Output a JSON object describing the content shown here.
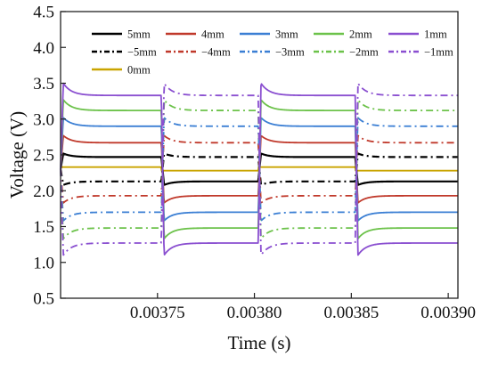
{
  "chart_data": {
    "type": "line",
    "xlabel": "Time (s)",
    "ylabel": "Voltage (V)",
    "xlim": [
      0.0037,
      0.003905
    ],
    "ylim": [
      0.5,
      4.5
    ],
    "xticks": [
      0.00375,
      0.0038,
      0.00385,
      0.0039
    ],
    "xtick_labels": [
      "0.00375",
      "0.00380",
      "0.00385",
      "0.00390"
    ],
    "yticks": [
      0.5,
      1.0,
      1.5,
      2.0,
      2.5,
      3.0,
      3.5,
      4.0,
      4.5
    ],
    "ytick_labels": [
      "0.5",
      "1.0",
      "1.5",
      "2.0",
      "2.5",
      "3.0",
      "3.5",
      "4.0",
      "4.5"
    ],
    "legend_position": "top",
    "square_wave_period": 5e-05,
    "phase_switch_times": [
      0.0037,
      0.003752,
      0.003802,
      0.003852,
      0.003902
    ],
    "baseline": 2.3,
    "series": [
      {
        "name": "5mm",
        "color": "#000000",
        "dash": "solid",
        "phase": 0,
        "peak": 2.52,
        "settle": 2.47
      },
      {
        "name": "4mm",
        "color": "#c0392b",
        "dash": "solid",
        "phase": 0,
        "peak": 2.77,
        "settle": 2.67
      },
      {
        "name": "3mm",
        "color": "#3b7fd4",
        "dash": "solid",
        "phase": 0,
        "peak": 3.02,
        "settle": 2.9
      },
      {
        "name": "2mm",
        "color": "#6cc24a",
        "dash": "solid",
        "phase": 0,
        "peak": 3.27,
        "settle": 3.12
      },
      {
        "name": "1mm",
        "color": "#8a4fd0",
        "dash": "solid",
        "phase": 0,
        "peak": 3.5,
        "settle": 3.33
      },
      {
        "name": "−5mm",
        "color": "#000000",
        "dash": "dashdot",
        "phase": 1,
        "peak": 2.52,
        "settle": 2.47
      },
      {
        "name": "−4mm",
        "color": "#c0392b",
        "dash": "dashdot",
        "phase": 1,
        "peak": 2.77,
        "settle": 2.67
      },
      {
        "name": "−3mm",
        "color": "#3b7fd4",
        "dash": "dashdot",
        "phase": 1,
        "peak": 3.02,
        "settle": 2.9
      },
      {
        "name": "−2mm",
        "color": "#6cc24a",
        "dash": "dashdot",
        "phase": 1,
        "peak": 3.27,
        "settle": 3.12
      },
      {
        "name": "−1mm",
        "color": "#8a4fd0",
        "dash": "dashdot",
        "phase": 1,
        "peak": 3.5,
        "settle": 3.33
      },
      {
        "name": "0mm",
        "color": "#c9a400",
        "dash": "solid",
        "phase": 0,
        "flat": true,
        "high": 2.33,
        "low": 2.28
      }
    ]
  }
}
